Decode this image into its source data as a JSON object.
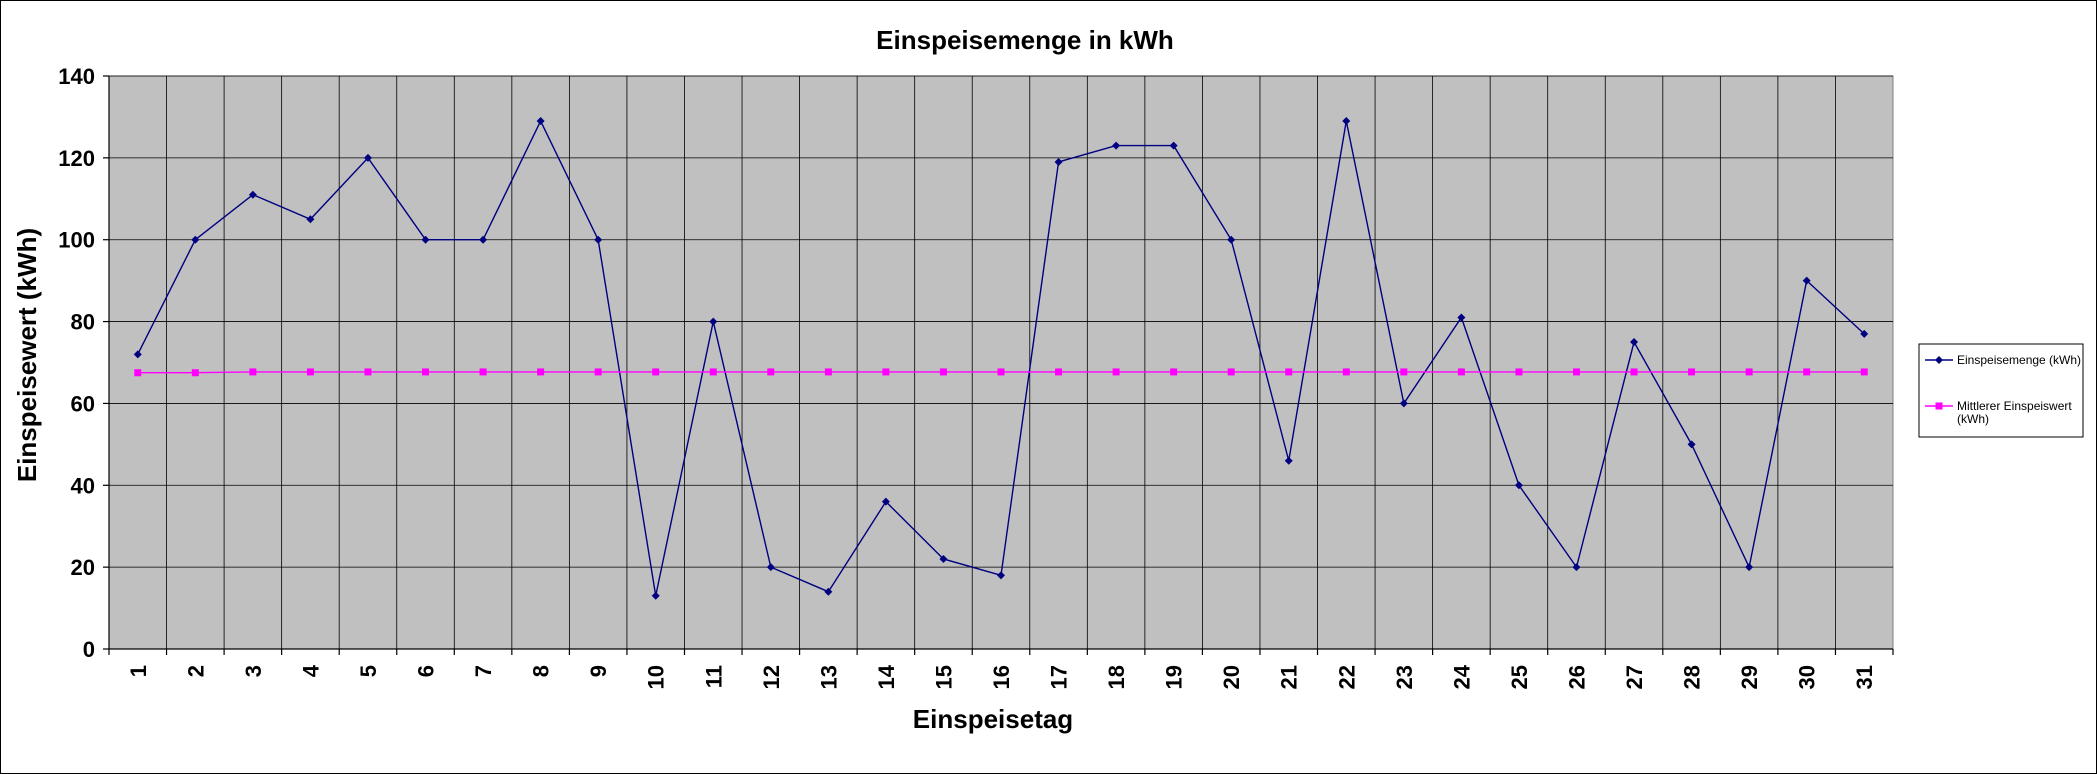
{
  "chart_data": {
    "type": "line",
    "title": "Einspeisemenge in kWh",
    "xlabel": "Einspeisetag",
    "ylabel": "Einspeisewert  (kWh)",
    "ylim": [
      0,
      140
    ],
    "yticks": [
      0,
      20,
      40,
      60,
      80,
      100,
      120,
      140
    ],
    "grid": true,
    "legend_position": "right",
    "plot_background": "#c0c0c0",
    "categories": [
      "1",
      "2",
      "3",
      "4",
      "5",
      "6",
      "7",
      "8",
      "9",
      "10",
      "11",
      "12",
      "13",
      "14",
      "15",
      "16",
      "17",
      "18",
      "19",
      "20",
      "21",
      "22",
      "23",
      "24",
      "25",
      "26",
      "27",
      "28",
      "29",
      "30",
      "31"
    ],
    "series": [
      {
        "name": "Einspeisemenge (kWh)",
        "color": "#000080",
        "marker": "diamond",
        "values": [
          72,
          100,
          111,
          105,
          120,
          100,
          100,
          129,
          100,
          13,
          80,
          20,
          14,
          36,
          22,
          18,
          119,
          123,
          123,
          100,
          46,
          129,
          60,
          81,
          40,
          20,
          75,
          50,
          20,
          90,
          77
        ]
      },
      {
        "name": "Mittlerer Einspeiswert (kWh)",
        "legend_lines": [
          "Mittlerer Einspeiswert",
          "(kWh)"
        ],
        "color": "#ff00ff",
        "marker": "square",
        "values": [
          67.5,
          67.5,
          67.7,
          67.7,
          67.7,
          67.7,
          67.7,
          67.7,
          67.7,
          67.7,
          67.7,
          67.7,
          67.7,
          67.7,
          67.7,
          67.7,
          67.7,
          67.7,
          67.7,
          67.7,
          67.7,
          67.7,
          67.7,
          67.7,
          67.7,
          67.7,
          67.7,
          67.7,
          67.7,
          67.7,
          67.7
        ]
      }
    ]
  }
}
